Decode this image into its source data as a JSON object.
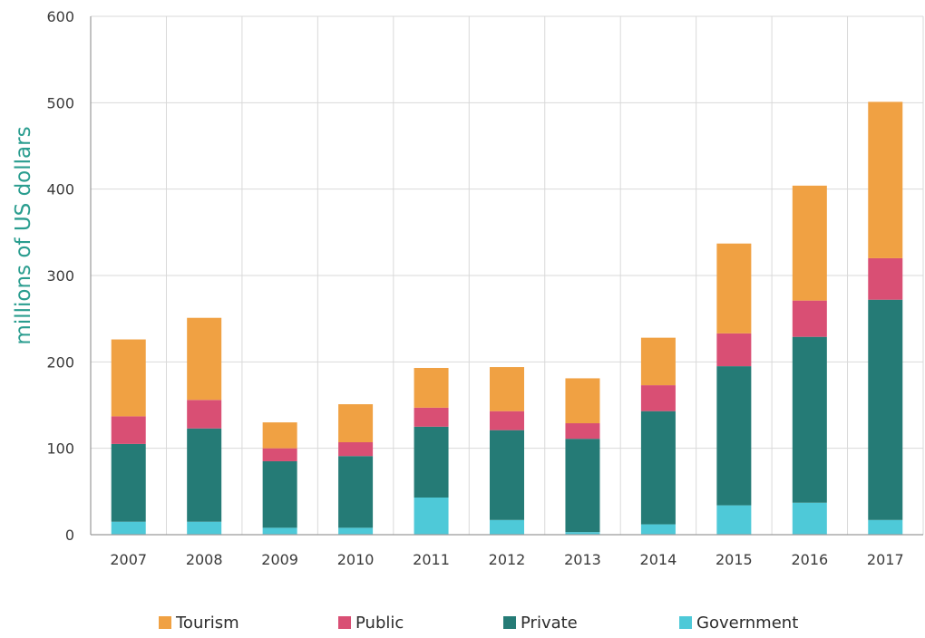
{
  "chart_data": {
    "type": "bar",
    "stacked": true,
    "title": "",
    "xlabel": "",
    "ylabel": "millions of US dollars",
    "ylim": [
      0,
      600
    ],
    "yticks": [
      "0",
      "100",
      "200",
      "300",
      "400",
      "500",
      "600"
    ],
    "categories": [
      "2007",
      "2008",
      "2009",
      "2010",
      "2011",
      "2012",
      "2013",
      "2014",
      "2015",
      "2016",
      "2017"
    ],
    "series": [
      {
        "name": "Government",
        "color": "#4ec9d8",
        "values": [
          15,
          15,
          8,
          8,
          43,
          17,
          3,
          12,
          34,
          37,
          17
        ]
      },
      {
        "name": "Private",
        "color": "#257b76",
        "values": [
          90,
          108,
          77,
          83,
          82,
          104,
          108,
          131,
          161,
          192,
          255
        ]
      },
      {
        "name": "Public",
        "color": "#d94f74",
        "values": [
          32,
          33,
          15,
          16,
          22,
          22,
          18,
          30,
          38,
          42,
          48
        ]
      },
      {
        "name": "Tourism",
        "color": "#f0a143",
        "values": [
          89,
          95,
          30,
          44,
          46,
          51,
          52,
          55,
          104,
          133,
          181
        ]
      }
    ],
    "legend": {
      "placement": "bottom",
      "order": [
        "Tourism",
        "Public",
        "Private",
        "Government"
      ]
    },
    "grid": true,
    "colors": {
      "ylabel": "#2a9d8f",
      "grid": "#d9d9d9"
    }
  }
}
